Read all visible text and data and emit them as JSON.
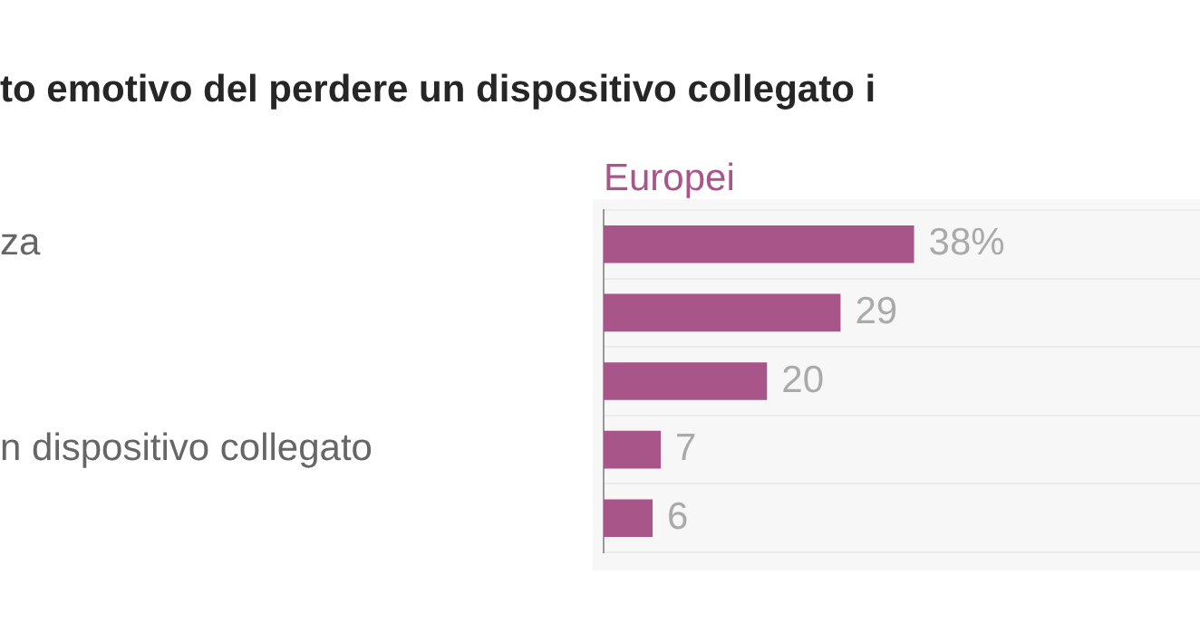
{
  "chart_data": {
    "type": "bar",
    "orientation": "horizontal",
    "title": "to emotivo del perdere un dispositivo collegato i",
    "categories": [
      "za",
      null,
      null,
      "n dispositivo collegato",
      null
    ],
    "series": [
      {
        "name": "Europei",
        "color": "#a8558a",
        "values": [
          38,
          29,
          20,
          7,
          6
        ],
        "value_labels": [
          "38%",
          "29",
          "20",
          "7",
          "6"
        ]
      }
    ],
    "xlim": [
      0,
      73
    ],
    "grid": "y",
    "tick_labels": "y",
    "legend": "top left"
  }
}
